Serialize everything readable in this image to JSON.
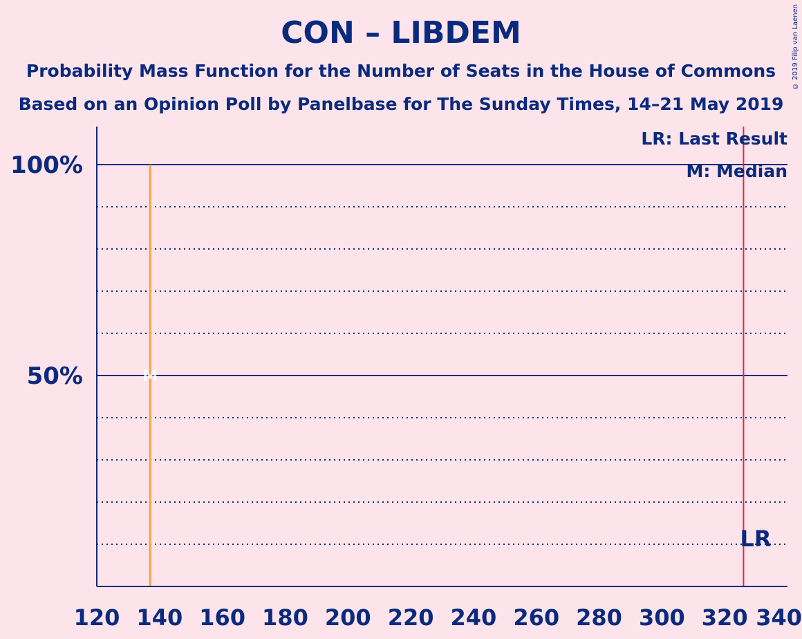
{
  "title": "CON – LIBDEM",
  "subtitle1": "Probability Mass Function for the Number of Seats in the House of Commons",
  "subtitle2": "Based on an Opinion Poll by Panelbase for The Sunday Times, 14–21 May 2019",
  "copyright": "© 2019 Filip van Laenen",
  "legend": {
    "last_result": "LR: Last Result",
    "median": "M: Median"
  },
  "colors": {
    "background": "#fde4ea",
    "axis": "#0a2a7e",
    "bar": "#f7a541",
    "last_result_line": "#e0284a"
  },
  "chart_data": {
    "type": "bar",
    "xlim": [
      120,
      340
    ],
    "ylim": [
      0,
      1
    ],
    "x_ticks": [
      120,
      140,
      160,
      180,
      200,
      220,
      240,
      260,
      280,
      300,
      320,
      340
    ],
    "y_ticks": [
      {
        "value": 0.5,
        "label": "50%"
      },
      {
        "value": 1.0,
        "label": "100%"
      }
    ],
    "grid_dotted": [
      0.1,
      0.2,
      0.3,
      0.4,
      0.6,
      0.7,
      0.8,
      0.9
    ],
    "grid_solid": [
      0.5,
      1.0
    ],
    "x": [
      137
    ],
    "values": [
      1.0
    ],
    "median": 137,
    "median_label": "M",
    "last_result": 326,
    "last_result_label": "LR"
  }
}
